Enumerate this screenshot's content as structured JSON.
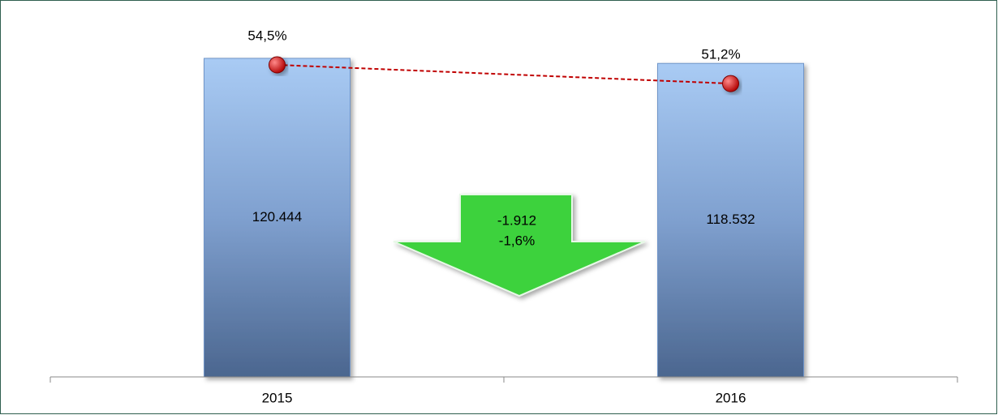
{
  "chart_data": {
    "type": "combo",
    "categories": [
      "2015",
      "2016"
    ],
    "series": [
      {
        "type": "bar",
        "color": "#6f95c9",
        "values": [
          120444,
          118532
        ],
        "value_labels": [
          "120.444",
          "118.532"
        ]
      },
      {
        "type": "line",
        "axis": "y2",
        "color": "#c00000",
        "values": [
          54.5,
          51.2
        ],
        "value_labels": [
          "54,5%",
          "51,2%"
        ]
      }
    ],
    "annotations": [
      "-1.912",
      "-1,6%"
    ]
  }
}
